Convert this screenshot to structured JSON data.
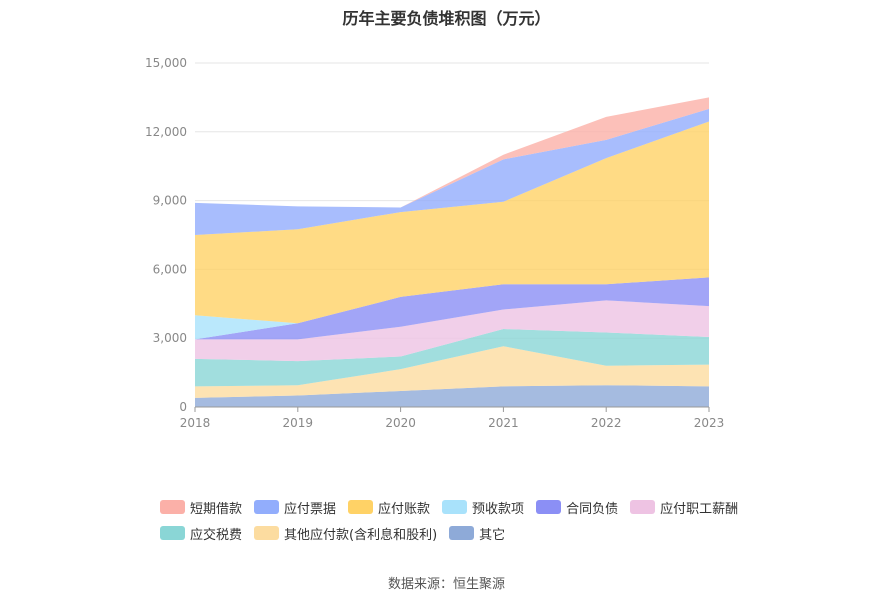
{
  "chart_data": {
    "type": "area",
    "stacked": true,
    "title": "历年主要负债堆积图（万元）",
    "x": [
      "2018",
      "2019",
      "2020",
      "2021",
      "2022",
      "2023"
    ],
    "ylim": [
      0,
      15000
    ],
    "yticks": [
      0,
      3000,
      6000,
      9000,
      12000,
      15000
    ],
    "ytick_labels": [
      "0",
      "3,000",
      "6,000",
      "9,000",
      "12,000",
      "15,000"
    ],
    "grid": true,
    "legend_position": "bottom",
    "series": [
      {
        "name": "其它",
        "color": "#8eaad8",
        "values": [
          400,
          500,
          700,
          900,
          950,
          900
        ]
      },
      {
        "name": "其他应付款(含利息和股利)",
        "color": "#fcdca0",
        "values": [
          500,
          450,
          950,
          1750,
          850,
          950
        ]
      },
      {
        "name": "应交税费",
        "color": "#8ad6d6",
        "values": [
          1200,
          1050,
          550,
          750,
          1450,
          1200
        ]
      },
      {
        "name": "应付职工薪酬",
        "color": "#eec3e3",
        "values": [
          850,
          950,
          1300,
          850,
          1400,
          1350
        ]
      },
      {
        "name": "合同负债",
        "color": "#8b8ff5",
        "values": [
          0,
          700,
          1300,
          1100,
          700,
          1250
        ]
      },
      {
        "name": "预收款项",
        "color": "#a9e2fb",
        "values": [
          1050,
          0,
          0,
          0,
          0,
          0
        ]
      },
      {
        "name": "应付账款",
        "color": "#ffd266",
        "values": [
          3500,
          4100,
          3700,
          3600,
          5500,
          6800
        ]
      },
      {
        "name": "应付票据",
        "color": "#92adfc",
        "values": [
          1400,
          1000,
          200,
          1850,
          800,
          550
        ]
      },
      {
        "name": "短期借款",
        "color": "#fbb0a8",
        "values": [
          0,
          0,
          0,
          200,
          1000,
          500
        ]
      }
    ]
  },
  "legend": {
    "rows": [
      [
        {
          "label": "短期借款",
          "color": "#fbb0a8"
        },
        {
          "label": "应付票据",
          "color": "#92adfc"
        },
        {
          "label": "应付账款",
          "color": "#ffd266"
        },
        {
          "label": "预收款项",
          "color": "#a9e2fb"
        },
        {
          "label": "合同负债",
          "color": "#8b8ff5"
        },
        {
          "label": "应付职工薪酬",
          "color": "#eec3e3"
        }
      ],
      [
        {
          "label": "应交税费",
          "color": "#8ad6d6"
        },
        {
          "label": "其他应付款(含利息和股利)",
          "color": "#fcdca0"
        },
        {
          "label": "其它",
          "color": "#8eaad8"
        }
      ]
    ]
  },
  "source": "数据来源：恒生聚源"
}
